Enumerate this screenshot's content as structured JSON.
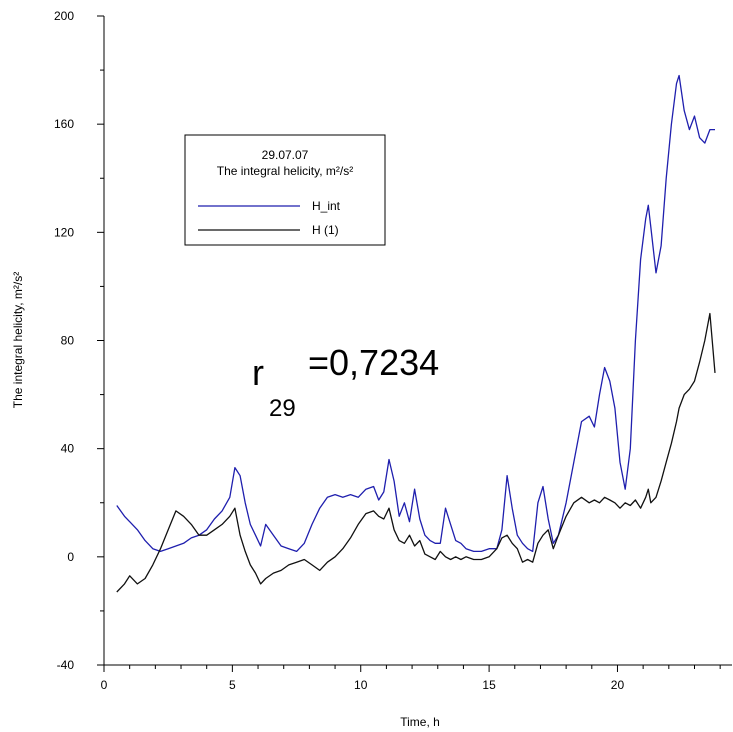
{
  "chart_data": {
    "type": "line",
    "xlabel": "Time, h",
    "ylabel": "The integral helicity, m²/s²",
    "xlim": [
      0,
      24.5
    ],
    "ylim": [
      -40,
      200
    ],
    "x_ticks": [
      0,
      5,
      10,
      15,
      20
    ],
    "y_ticks": [
      -40,
      0,
      40,
      80,
      120,
      160,
      200
    ],
    "grid": false,
    "legend": {
      "placement": "top-left",
      "title_line1": "29.07.07",
      "title_line2": "The integral helicity, m²/s²"
    },
    "annotation": {
      "main": "r",
      "subscript": "29",
      "value": "=0,7234"
    },
    "series": [
      {
        "name": "H_int",
        "color": "#1f1fae",
        "x": [
          0.5,
          0.8,
          1.0,
          1.3,
          1.6,
          1.9,
          2.2,
          2.5,
          2.8,
          3.1,
          3.4,
          3.7,
          4.0,
          4.3,
          4.6,
          4.9,
          5.1,
          5.3,
          5.5,
          5.7,
          5.9,
          6.1,
          6.3,
          6.6,
          6.9,
          7.2,
          7.5,
          7.8,
          8.1,
          8.4,
          8.7,
          9.0,
          9.3,
          9.6,
          9.9,
          10.2,
          10.5,
          10.7,
          10.9,
          11.1,
          11.3,
          11.5,
          11.7,
          11.9,
          12.1,
          12.3,
          12.5,
          12.7,
          12.9,
          13.1,
          13.3,
          13.5,
          13.7,
          13.9,
          14.1,
          14.4,
          14.7,
          15.0,
          15.3,
          15.5,
          15.7,
          15.9,
          16.1,
          16.3,
          16.5,
          16.7,
          16.9,
          17.1,
          17.3,
          17.5,
          17.7,
          18.0,
          18.3,
          18.6,
          18.9,
          19.1,
          19.3,
          19.5,
          19.7,
          19.9,
          20.1,
          20.3,
          20.5,
          20.7,
          20.9,
          21.1,
          21.2,
          21.3,
          21.5,
          21.7,
          21.9,
          22.1,
          22.3,
          22.4,
          22.6,
          22.8,
          23.0,
          23.2,
          23.4,
          23.6,
          23.8
        ],
        "values": [
          19,
          15,
          13,
          10,
          6,
          3,
          2,
          3,
          4,
          5,
          7,
          8,
          10,
          14,
          17,
          22,
          33,
          30,
          20,
          12,
          8,
          4,
          12,
          8,
          4,
          3,
          2,
          5,
          12,
          18,
          22,
          23,
          22,
          23,
          22,
          25,
          26,
          21,
          24,
          36,
          28,
          15,
          20,
          13,
          25,
          14,
          8,
          6,
          5,
          5,
          18,
          12,
          6,
          5,
          3,
          2,
          2,
          3,
          3,
          10,
          30,
          18,
          8,
          5,
          3,
          2,
          20,
          26,
          14,
          5,
          8,
          20,
          35,
          50,
          52,
          48,
          60,
          70,
          65,
          55,
          35,
          25,
          40,
          80,
          110,
          125,
          130,
          122,
          105,
          115,
          140,
          160,
          175,
          178,
          165,
          158,
          163,
          155,
          153,
          158,
          158
        ]
      },
      {
        "name": "H (1)",
        "color": "#111111",
        "x": [
          0.5,
          0.8,
          1.0,
          1.3,
          1.6,
          1.9,
          2.2,
          2.5,
          2.8,
          3.1,
          3.4,
          3.7,
          4.0,
          4.3,
          4.6,
          4.9,
          5.1,
          5.3,
          5.5,
          5.7,
          5.9,
          6.1,
          6.3,
          6.6,
          6.9,
          7.2,
          7.5,
          7.8,
          8.1,
          8.4,
          8.7,
          9.0,
          9.3,
          9.6,
          9.9,
          10.2,
          10.5,
          10.7,
          10.9,
          11.1,
          11.3,
          11.5,
          11.7,
          11.9,
          12.1,
          12.3,
          12.5,
          12.7,
          12.9,
          13.1,
          13.3,
          13.5,
          13.7,
          13.9,
          14.1,
          14.4,
          14.7,
          15.0,
          15.3,
          15.5,
          15.7,
          15.9,
          16.1,
          16.3,
          16.5,
          16.7,
          16.9,
          17.1,
          17.3,
          17.5,
          17.7,
          18.0,
          18.3,
          18.6,
          18.9,
          19.1,
          19.3,
          19.5,
          19.7,
          19.9,
          20.1,
          20.3,
          20.5,
          20.7,
          20.9,
          21.1,
          21.2,
          21.3,
          21.5,
          21.7,
          21.9,
          22.1,
          22.3,
          22.4,
          22.6,
          22.8,
          23.0,
          23.2,
          23.4,
          23.6,
          23.8
        ],
        "values": [
          -13,
          -10,
          -7,
          -10,
          -8,
          -3,
          3,
          10,
          17,
          15,
          12,
          8,
          8,
          10,
          12,
          15,
          18,
          8,
          2,
          -3,
          -6,
          -10,
          -8,
          -6,
          -5,
          -3,
          -2,
          -1,
          -3,
          -5,
          -2,
          0,
          3,
          7,
          12,
          16,
          17,
          15,
          14,
          18,
          10,
          6,
          5,
          8,
          4,
          6,
          1,
          0,
          -1,
          2,
          0,
          -1,
          0,
          -1,
          0,
          -1,
          -1,
          0,
          3,
          7,
          8,
          5,
          3,
          -2,
          -1,
          -2,
          5,
          8,
          10,
          3,
          8,
          15,
          20,
          22,
          20,
          21,
          20,
          22,
          21,
          20,
          18,
          20,
          19,
          21,
          18,
          22,
          25,
          20,
          22,
          28,
          35,
          42,
          50,
          55,
          60,
          62,
          65,
          72,
          80,
          90,
          68
        ]
      }
    ]
  }
}
